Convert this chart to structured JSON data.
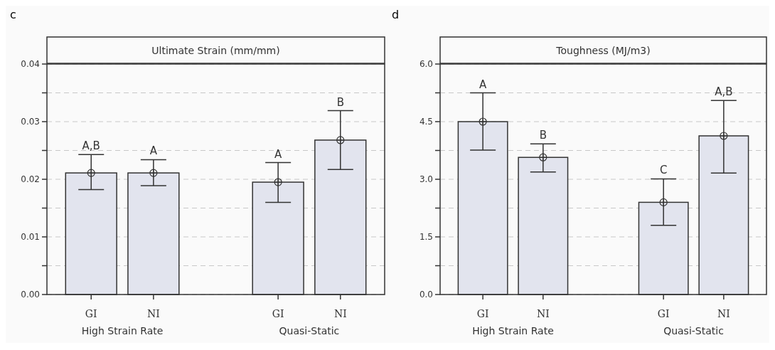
{
  "chart_data": [
    {
      "type": "bar",
      "title": "Ultimate Strain (mm/mm)",
      "categories": [
        "GI",
        "NI",
        null,
        "GI",
        "NI"
      ],
      "series": [
        {
          "color": "#e2e4ee",
          "values": [
            0.0211,
            0.0211,
            null,
            0.0195,
            0.0268
          ],
          "errors": [
            [
              0.0182,
              0.0243
            ],
            [
              0.0189,
              0.0234
            ],
            null,
            [
              0.016,
              0.0229
            ],
            [
              0.0217,
              0.0319
            ]
          ]
        },
        {
          "type": "scatter",
          "color": "#333333",
          "marker": "circle",
          "values": [
            0.0211,
            0.0211,
            null,
            0.0195,
            0.0268
          ]
        }
      ],
      "ylim": [
        0,
        0.04
      ],
      "yticks": [
        {
          "value": 0,
          "label": "0.00"
        },
        {
          "value": 0.005,
          "label": null
        },
        {
          "value": 0.01,
          "label": "0.01"
        },
        {
          "value": 0.015,
          "label": null
        },
        {
          "value": 0.02,
          "label": "0.02"
        },
        {
          "value": 0.025,
          "label": null
        },
        {
          "value": 0.03,
          "label": "0.03"
        },
        {
          "value": 0.035,
          "label": null
        },
        {
          "value": 0.04,
          "label": "0.04"
        }
      ],
      "grid": "y",
      "annotations": [
        "c",
        "A,B",
        "A",
        "A",
        "B",
        "High Strain Rate",
        "Quasi-Static"
      ]
    },
    {
      "type": "bar",
      "title": "Toughness (MJ/m3)",
      "categories": [
        "GI",
        "NI",
        null,
        "GI",
        "NI"
      ],
      "series": [
        {
          "color": "#e2e4ee",
          "values": [
            4.5,
            3.57,
            null,
            2.4,
            4.13
          ],
          "errors": [
            [
              3.76,
              5.25
            ],
            [
              3.19,
              3.92
            ],
            null,
            [
              1.8,
              3.01
            ],
            [
              3.16,
              5.05
            ]
          ]
        },
        {
          "type": "scatter",
          "color": "#333333",
          "marker": "circle",
          "values": [
            4.5,
            3.57,
            null,
            2.4,
            4.13
          ]
        }
      ],
      "ylim": [
        0,
        6
      ],
      "yticks": [
        {
          "value": 0,
          "label": "0.0"
        },
        {
          "value": 0.75,
          "label": null
        },
        {
          "value": 1.5,
          "label": "1.5"
        },
        {
          "value": 2.25,
          "label": null
        },
        {
          "value": 3,
          "label": "3.0"
        },
        {
          "value": 3.75,
          "label": null
        },
        {
          "value": 4.5,
          "label": "4.5"
        },
        {
          "value": 5.25,
          "label": null
        },
        {
          "value": 6,
          "label": "6.0"
        }
      ],
      "grid": "y",
      "annotations": [
        "d",
        "A",
        "B",
        "C",
        "A,B",
        "High Strain Rate",
        "Quasi-Static"
      ]
    }
  ]
}
